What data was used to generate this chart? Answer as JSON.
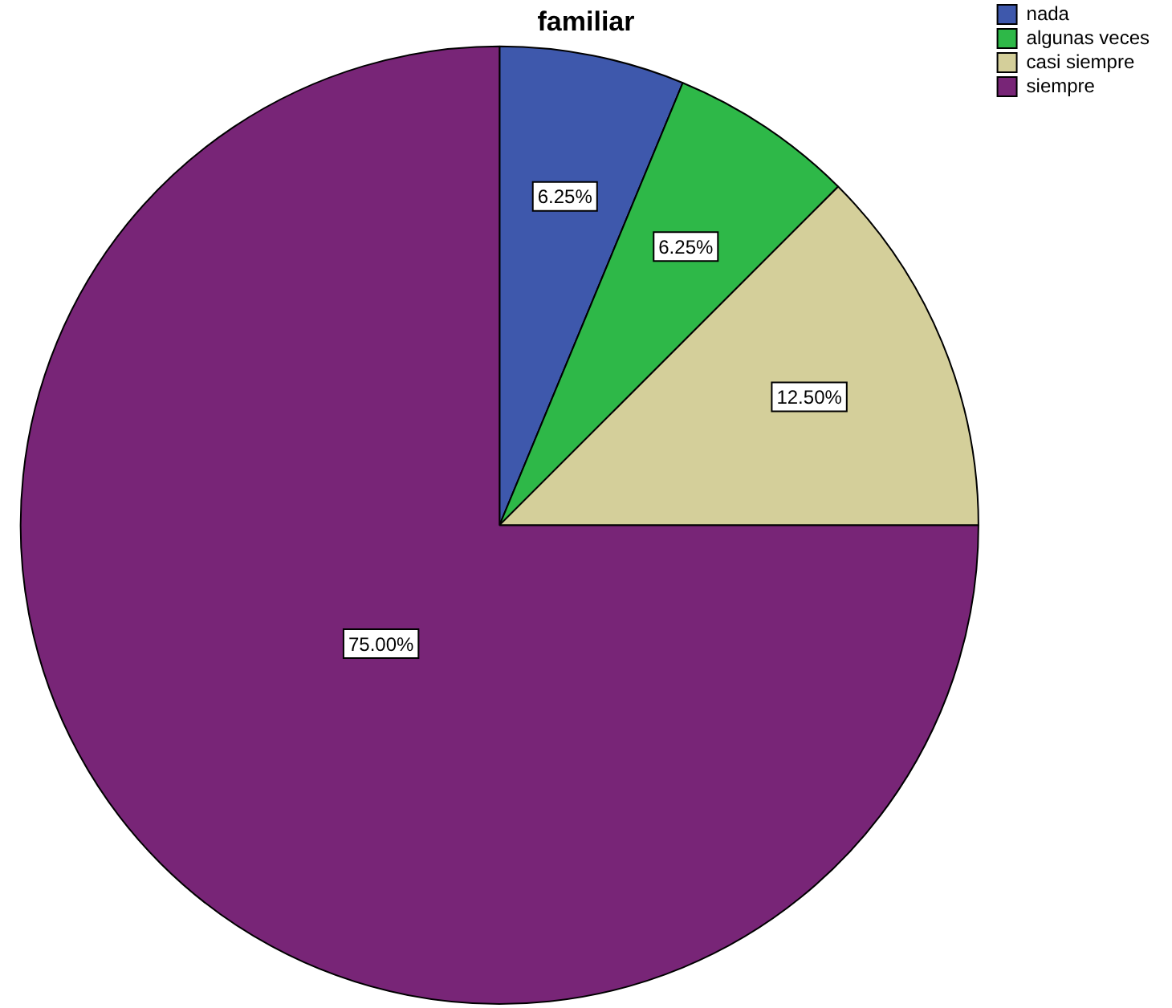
{
  "chart_data": {
    "type": "pie",
    "title": "familiar",
    "categories": [
      "nada",
      "algunas veces",
      "casi siempre",
      "siempre"
    ],
    "values": [
      6.25,
      6.25,
      12.5,
      75
    ],
    "colors": [
      "#3e58ac",
      "#2eb848",
      "#d4cf9a",
      "#782577"
    ],
    "value_labels": [
      "6.25%",
      "6.25%",
      "12.50%",
      "75.00%"
    ],
    "legend": "top right"
  }
}
